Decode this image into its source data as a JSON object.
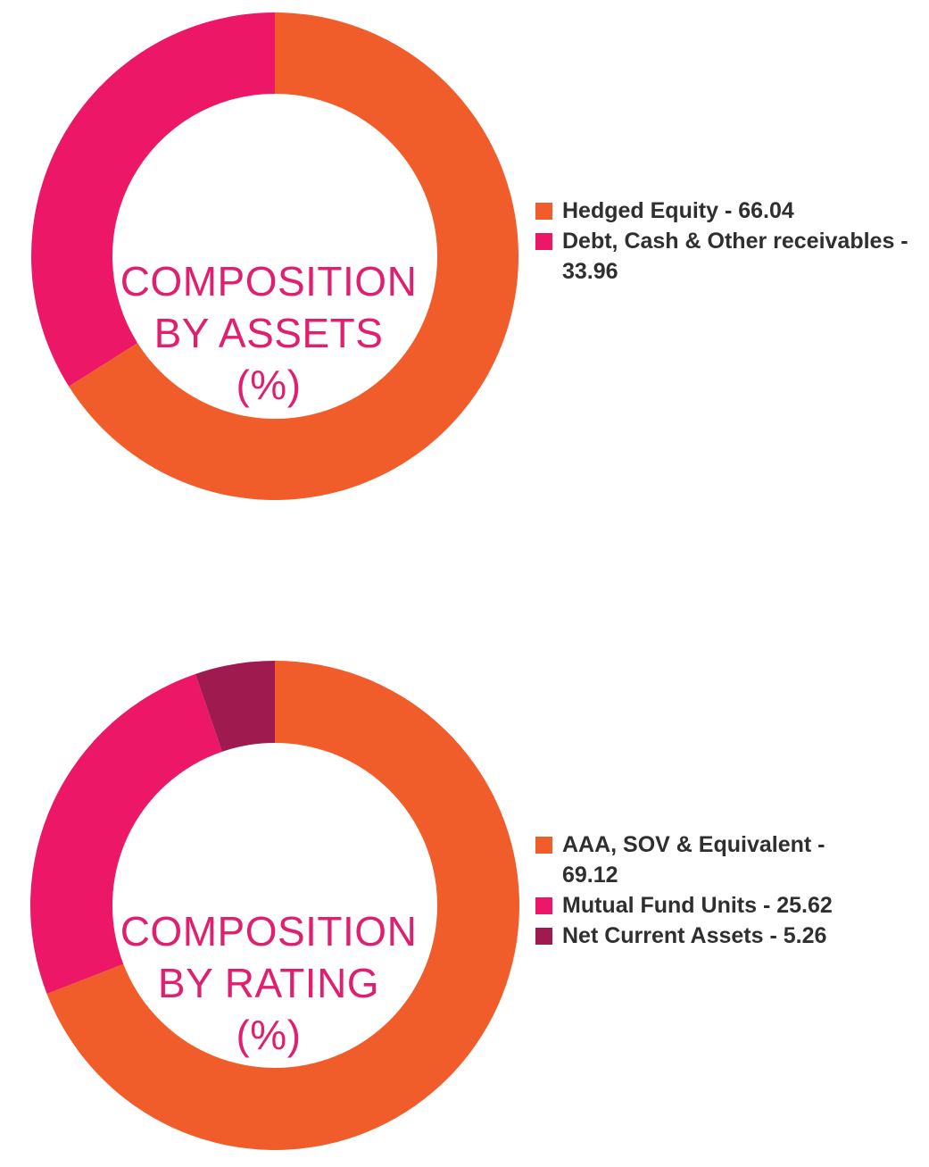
{
  "chart_data": [
    {
      "type": "pie",
      "title_lines": [
        "COMPOSITION",
        "BY ASSETS",
        "(%)"
      ],
      "slices": [
        {
          "label": "Hedged Equity - 66.04",
          "value": 66.04,
          "color": "#f15d2a"
        },
        {
          "label": "Debt, Cash & Other receivables - 33.96",
          "value": 33.96,
          "color": "#ec1766"
        }
      ],
      "legend": "right"
    },
    {
      "type": "pie",
      "title_lines": [
        "COMPOSITION",
        "BY RATING",
        "(%)"
      ],
      "slices": [
        {
          "label": "AAA, SOV & Equivalent - 69.12",
          "value": 69.12,
          "color": "#f15d2a"
        },
        {
          "label": "Mutual Fund Units - 25.62",
          "value": 25.62,
          "color": "#ec1766"
        },
        {
          "label": "Net Current Assets - 5.26",
          "value": 5.26,
          "color": "#9e1a4f"
        }
      ],
      "legend": "right"
    }
  ]
}
